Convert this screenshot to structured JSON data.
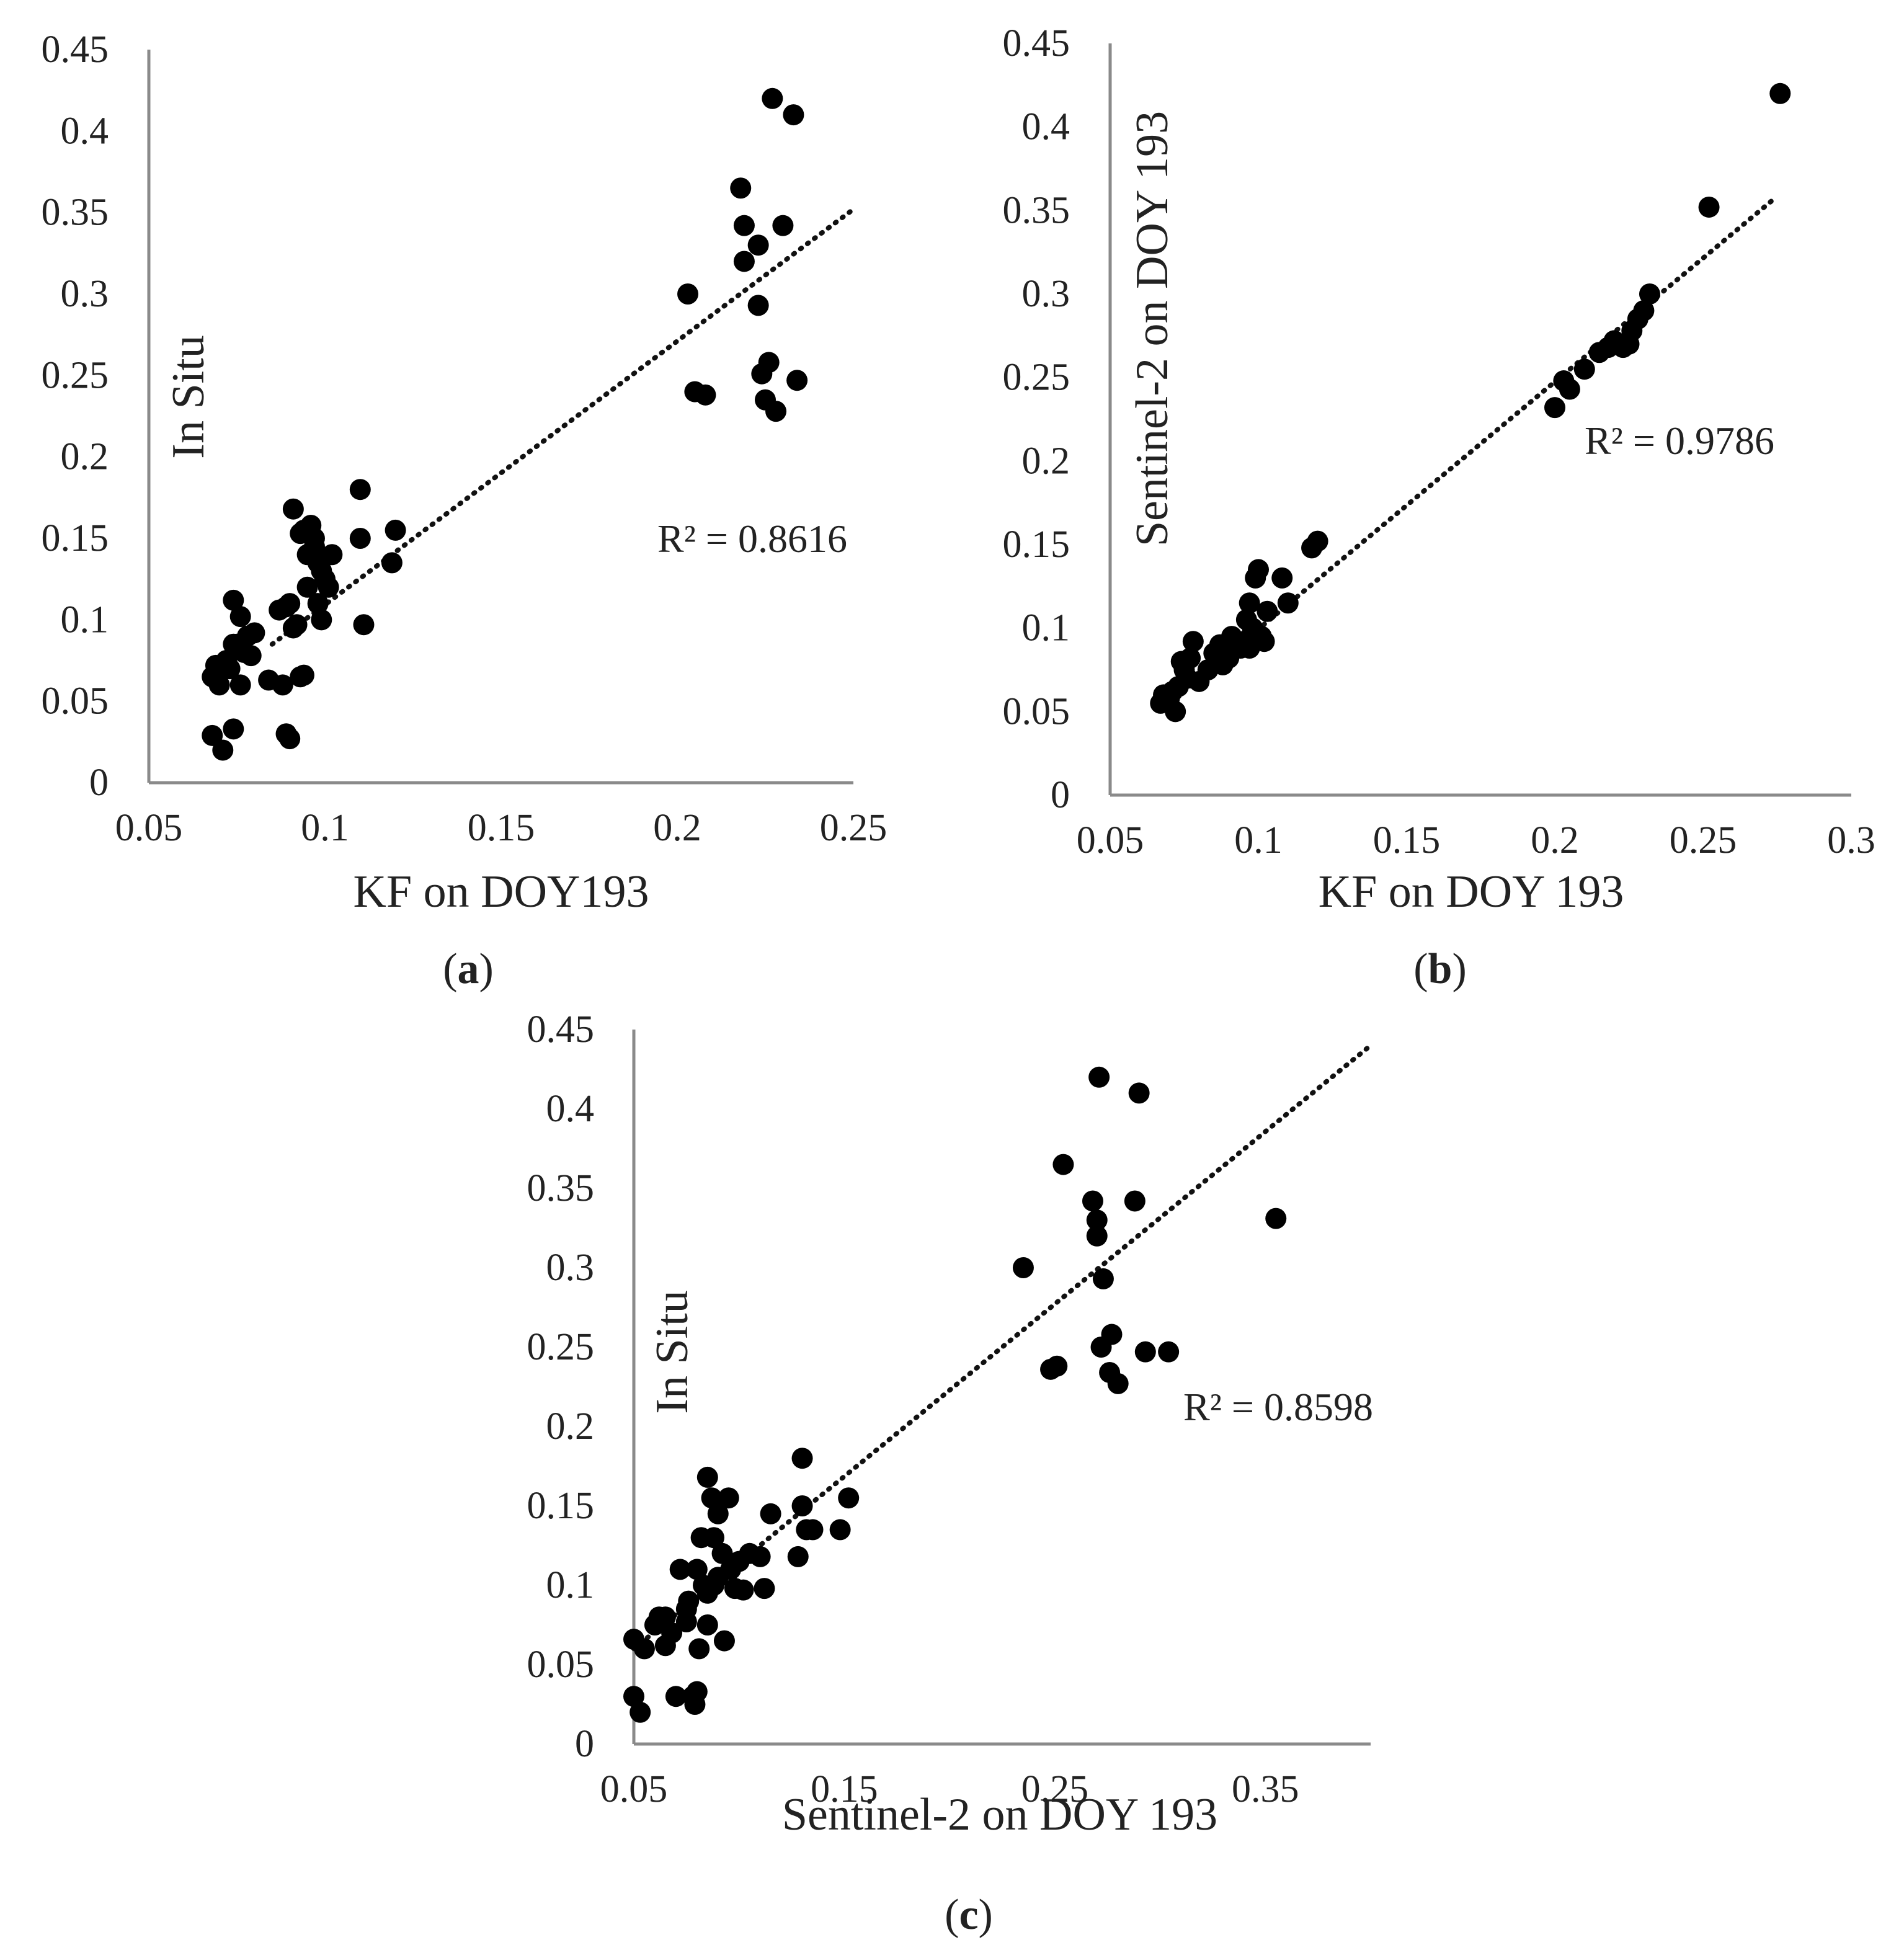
{
  "figure": {
    "panels": [
      {
        "id": "a",
        "caption_letter": "a"
      },
      {
        "id": "b",
        "caption_letter": "b"
      },
      {
        "id": "c",
        "caption_letter": "c"
      }
    ]
  },
  "chart_data": [
    {
      "id": "a",
      "type": "scatter",
      "xlabel": "KF on DOY193",
      "ylabel": "In Situ",
      "xlim": [
        0.05,
        0.25
      ],
      "ylim": [
        0,
        0.45
      ],
      "xticks": [
        "0.05",
        "0.1",
        "0.15",
        "0.2",
        "0.25"
      ],
      "yticks": [
        "0",
        "0.05",
        "0.1",
        "0.15",
        "0.2",
        "0.25",
        "0.3",
        "0.35",
        "0.4",
        "0.45"
      ],
      "r2_text": "R² = 0.8616",
      "trendline": {
        "x": [
          0.085,
          0.25
        ],
        "y": [
          0.085,
          0.352
        ]
      },
      "points": {
        "x": [
          0.068,
          0.07,
          0.074,
          0.069,
          0.072,
          0.073,
          0.076,
          0.078,
          0.075,
          0.077,
          0.079,
          0.08,
          0.074,
          0.076,
          0.084,
          0.087,
          0.089,
          0.09,
          0.091,
          0.092,
          0.088,
          0.089,
          0.093,
          0.094,
          0.095,
          0.096,
          0.097,
          0.098,
          0.099,
          0.1,
          0.102,
          0.094,
          0.096,
          0.098,
          0.101,
          0.091,
          0.093,
          0.097,
          0.11,
          0.11,
          0.111,
          0.12,
          0.119,
          0.09,
          0.203,
          0.205,
          0.208,
          0.218,
          0.219,
          0.219,
          0.223,
          0.223,
          0.224,
          0.225,
          0.226,
          0.227,
          0.228,
          0.23,
          0.233,
          0.234,
          0.074,
          0.068,
          0.071,
          0.099,
          0.095
        ],
        "y": [
          0.065,
          0.06,
          0.112,
          0.072,
          0.075,
          0.07,
          0.102,
          0.09,
          0.085,
          0.08,
          0.078,
          0.092,
          0.033,
          0.06,
          0.063,
          0.106,
          0.108,
          0.11,
          0.095,
          0.097,
          0.06,
          0.03,
          0.065,
          0.066,
          0.12,
          0.14,
          0.145,
          0.135,
          0.13,
          0.125,
          0.14,
          0.155,
          0.158,
          0.11,
          0.12,
          0.168,
          0.153,
          0.15,
          0.18,
          0.15,
          0.097,
          0.155,
          0.135,
          0.027,
          0.3,
          0.24,
          0.238,
          0.365,
          0.342,
          0.32,
          0.33,
          0.293,
          0.251,
          0.235,
          0.258,
          0.42,
          0.228,
          0.342,
          0.41,
          0.247,
          0.085,
          0.029,
          0.02,
          0.1,
          0.14
        ]
      }
    },
    {
      "id": "b",
      "type": "scatter",
      "xlabel": "KF on DOY 193",
      "ylabel": "Sentinel-2 on DOY 193",
      "xlim": [
        0.05,
        0.3
      ],
      "ylim": [
        0,
        0.45
      ],
      "xticks": [
        "0.05",
        "0.1",
        "0.15",
        "0.2",
        "0.25",
        "0.3"
      ],
      "yticks": [
        "0",
        "0.05",
        "0.1",
        "0.15",
        "0.2",
        "0.25",
        "0.3",
        "0.35",
        "0.4",
        "0.45"
      ],
      "r2_text": "R² = 0.9786",
      "trendline": {
        "x": [
          0.068,
          0.274
        ],
        "y": [
          0.052,
          0.357
        ]
      },
      "points": {
        "x": [
          0.067,
          0.068,
          0.07,
          0.071,
          0.072,
          0.073,
          0.074,
          0.075,
          0.076,
          0.078,
          0.08,
          0.083,
          0.085,
          0.087,
          0.088,
          0.09,
          0.091,
          0.093,
          0.094,
          0.095,
          0.096,
          0.097,
          0.098,
          0.099,
          0.1,
          0.101,
          0.102,
          0.103,
          0.108,
          0.11,
          0.118,
          0.12,
          0.2,
          0.203,
          0.205,
          0.21,
          0.215,
          0.218,
          0.22,
          0.223,
          0.225,
          0.226,
          0.228,
          0.23,
          0.232,
          0.252,
          0.276,
          0.097,
          0.077
        ],
        "y": [
          0.055,
          0.06,
          0.058,
          0.062,
          0.05,
          0.065,
          0.08,
          0.075,
          0.07,
          0.092,
          0.068,
          0.075,
          0.085,
          0.09,
          0.078,
          0.082,
          0.095,
          0.09,
          0.088,
          0.092,
          0.105,
          0.115,
          0.1,
          0.13,
          0.135,
          0.095,
          0.092,
          0.11,
          0.13,
          0.115,
          0.148,
          0.152,
          0.232,
          0.248,
          0.243,
          0.255,
          0.265,
          0.268,
          0.272,
          0.268,
          0.27,
          0.278,
          0.285,
          0.29,
          0.3,
          0.352,
          0.42,
          0.088,
          0.082
        ]
      }
    },
    {
      "id": "c",
      "type": "scatter",
      "xlabel": "Sentinel-2 on DOY 193",
      "ylabel": "In Situ",
      "xlim": [
        0.05,
        0.4
      ],
      "ylim": [
        0,
        0.45
      ],
      "xticks": [
        "0.05",
        "0.15",
        "0.25",
        "0.35"
      ],
      "yticks": [
        "0",
        "0.05",
        "0.1",
        "0.15",
        "0.2",
        "0.25",
        "0.3",
        "0.35",
        "0.4",
        "0.45"
      ],
      "r2_text": "R² = 0.8598",
      "trendline": {
        "x": [
          0.05,
          0.4
        ],
        "y": [
          0.06,
          0.44
        ]
      },
      "points": {
        "x": [
          0.05,
          0.05,
          0.053,
          0.055,
          0.06,
          0.062,
          0.065,
          0.068,
          0.07,
          0.072,
          0.075,
          0.076,
          0.078,
          0.079,
          0.08,
          0.081,
          0.082,
          0.083,
          0.085,
          0.085,
          0.087,
          0.088,
          0.09,
          0.09,
          0.092,
          0.093,
          0.095,
          0.096,
          0.098,
          0.1,
          0.102,
          0.105,
          0.11,
          0.112,
          0.115,
          0.128,
          0.13,
          0.13,
          0.132,
          0.135,
          0.148,
          0.152,
          0.235,
          0.248,
          0.251,
          0.254,
          0.268,
          0.27,
          0.27,
          0.271,
          0.272,
          0.273,
          0.276,
          0.277,
          0.28,
          0.288,
          0.29,
          0.293,
          0.304,
          0.355,
          0.065,
          0.08,
          0.075,
          0.085,
          0.088
        ],
        "y": [
          0.03,
          0.066,
          0.02,
          0.06,
          0.075,
          0.08,
          0.062,
          0.07,
          0.03,
          0.11,
          0.085,
          0.09,
          0.03,
          0.025,
          0.11,
          0.06,
          0.13,
          0.1,
          0.095,
          0.168,
          0.155,
          0.13,
          0.145,
          0.105,
          0.12,
          0.065,
          0.155,
          0.11,
          0.098,
          0.115,
          0.097,
          0.12,
          0.118,
          0.098,
          0.145,
          0.118,
          0.15,
          0.18,
          0.135,
          0.135,
          0.135,
          0.155,
          0.3,
          0.236,
          0.238,
          0.365,
          0.342,
          0.33,
          0.32,
          0.42,
          0.25,
          0.293,
          0.234,
          0.258,
          0.227,
          0.342,
          0.41,
          0.247,
          0.247,
          0.331,
          0.08,
          0.033,
          0.077,
          0.075,
          0.1
        ]
      }
    }
  ]
}
